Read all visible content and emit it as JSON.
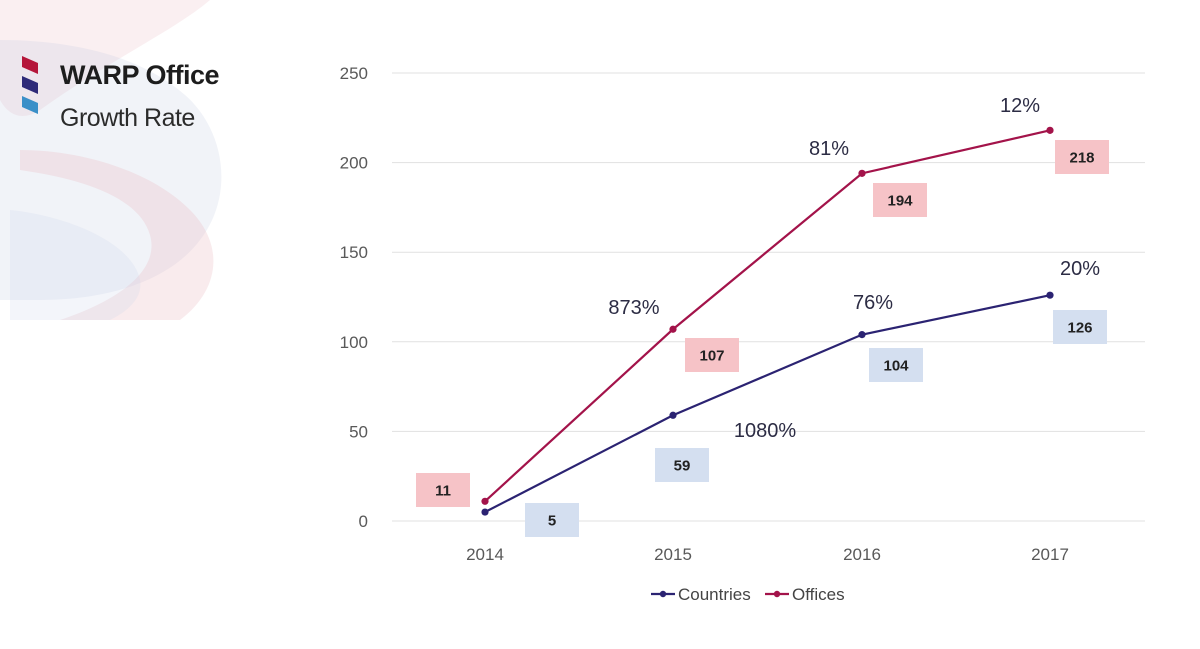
{
  "header": {
    "title": "WARP Office",
    "subtitle": "Growth Rate",
    "chevron_colors": [
      "#b5163a",
      "#2e2a78",
      "#3a8fc8"
    ]
  },
  "colors": {
    "countries": "#2b2372",
    "offices": "#a3134a",
    "countries_label_bg": "#d4dff0",
    "offices_label_bg": "#f6c3c7",
    "grid": "#e1e1e1"
  },
  "chart_data": {
    "type": "line",
    "title": "",
    "xlabel": "",
    "ylabel": "",
    "categories": [
      "2014",
      "2015",
      "2016",
      "2017"
    ],
    "ylim": [
      0,
      250
    ],
    "yticks": [
      "0",
      "50",
      "100",
      "150",
      "200",
      "250"
    ],
    "grid": true,
    "legend_position": "bottom",
    "series": [
      {
        "name": "Countries",
        "values": [
          5,
          59,
          104,
          126
        ],
        "data_labels": [
          "5",
          "59",
          "104",
          "126"
        ],
        "growth_labels": [
          "",
          "1080%",
          "76%",
          "20%"
        ]
      },
      {
        "name": "Offices",
        "values": [
          11,
          107,
          194,
          218
        ],
        "data_labels": [
          "11",
          "107",
          "194",
          "218"
        ],
        "growth_labels": [
          "",
          "873%",
          "81%",
          "12%"
        ]
      }
    ]
  }
}
